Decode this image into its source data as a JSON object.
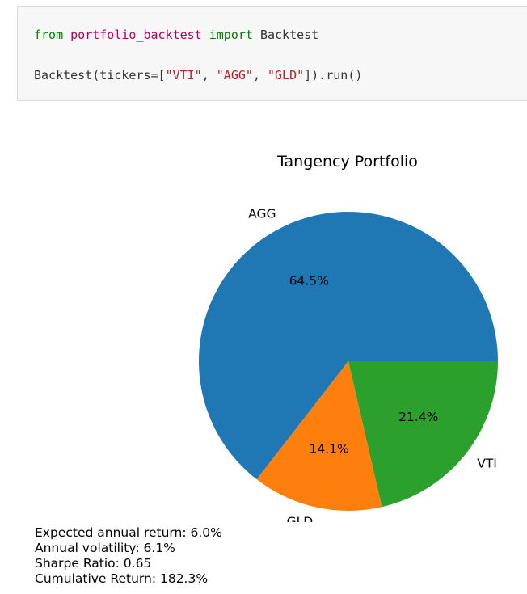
{
  "code": {
    "line1": {
      "kw_from": "from",
      "module": "portfolio_backtest",
      "kw_import": "import",
      "name": "Backtest"
    },
    "line2": {
      "prefix": "Backtest(tickers=[",
      "t1": "\"VTI\"",
      "sep1": ", ",
      "t2": "\"AGG\"",
      "sep2": ", ",
      "t3": "\"GLD\"",
      "suffix": "]).run()"
    }
  },
  "chart_data": {
    "type": "pie",
    "title": "Tangency Portfolio",
    "slices": [
      {
        "label": "AGG",
        "value": 64.5,
        "pct_label": "64.5%",
        "color": "#1f77b4"
      },
      {
        "label": "GLD",
        "value": 14.1,
        "pct_label": "14.1%",
        "color": "#ff7f0e"
      },
      {
        "label": "VTI",
        "value": 21.4,
        "pct_label": "21.4%",
        "color": "#2ca02c"
      }
    ]
  },
  "stats": {
    "expected_return": "Expected annual return: 6.0%",
    "volatility": "Annual volatility: 6.1%",
    "sharpe": "Sharpe Ratio: 0.65",
    "cumulative": "Cumulative Return: 182.3%"
  }
}
